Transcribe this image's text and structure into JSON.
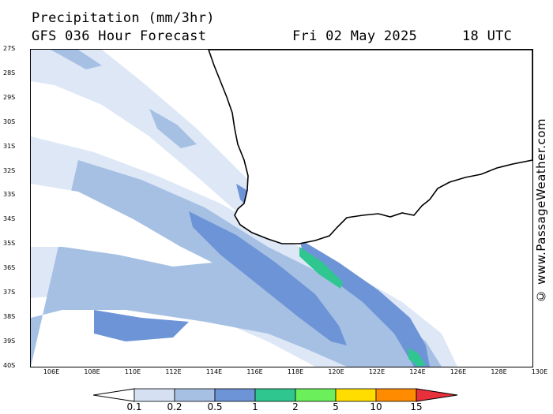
{
  "header": {
    "title": "Precipitation (mm/3hr)",
    "subtitle": "GFS 036 Hour Forecast",
    "date": "Fri 02 May 2025",
    "time": "18 UTC"
  },
  "credit": "© www.PassageWeather.com",
  "axes": {
    "lat_labels": [
      "27S",
      "28S",
      "29S",
      "30S",
      "31S",
      "32S",
      "33S",
      "34S",
      "35S",
      "36S",
      "37S",
      "38S",
      "39S",
      "40S"
    ],
    "lon_labels": [
      "106E",
      "108E",
      "110E",
      "112E",
      "114E",
      "116E",
      "118E",
      "120E",
      "122E",
      "124E",
      "126E",
      "128E",
      "130E"
    ]
  },
  "legend": {
    "labels": [
      "0.1",
      "0.2",
      "0.5",
      "1",
      "2",
      "5",
      "10",
      "15"
    ],
    "colors": [
      "#e8eef8",
      "#d5e1f3",
      "#a6c0e4",
      "#6c94d6",
      "#2fc78f",
      "#6bef5b",
      "#ffdd00",
      "#ff8c00",
      "#e8303c"
    ]
  },
  "colors": {
    "coastline": "#000000",
    "rain_light": "#dde7f6",
    "rain_moderate": "#a6c0e4",
    "rain_heavy": "#6c94d6",
    "rain_intense": "#2fc78f"
  }
}
